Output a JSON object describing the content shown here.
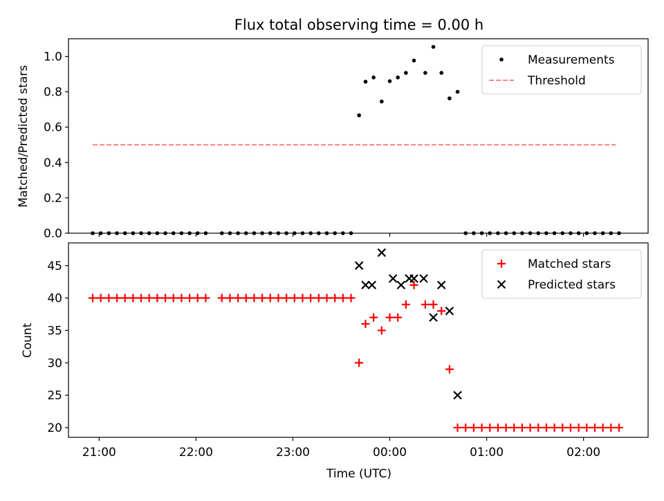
{
  "chart_data": [
    {
      "type": "scatter",
      "title": "Flux total observing time = 0.00 h",
      "xlabel": "",
      "ylabel": "Matched/Predicted stars",
      "ylim": [
        0.0,
        1.1
      ],
      "yticks": [
        "0.0",
        "0.2",
        "0.4",
        "0.6",
        "0.8",
        "1.0"
      ],
      "ytick_values": [
        0,
        0.2,
        0.4,
        0.6,
        0.8,
        1.0
      ],
      "legend_position": "top-right",
      "grid": false,
      "series": [
        {
          "name": "Measurements",
          "marker": "dot",
          "color": "#000000",
          "points": [
            [
              "20:56",
              0
            ],
            [
              "21:01",
              0
            ],
            [
              "21:06",
              0
            ],
            [
              "21:11",
              0
            ],
            [
              "21:16",
              0
            ],
            [
              "21:21",
              0
            ],
            [
              "21:26",
              0
            ],
            [
              "21:31",
              0
            ],
            [
              "21:36",
              0
            ],
            [
              "21:41",
              0
            ],
            [
              "21:46",
              0
            ],
            [
              "21:51",
              0
            ],
            [
              "21:56",
              0
            ],
            [
              "22:01",
              0
            ],
            [
              "22:06",
              0
            ],
            [
              "22:16",
              0
            ],
            [
              "22:21",
              0
            ],
            [
              "22:26",
              0
            ],
            [
              "22:31",
              0
            ],
            [
              "22:36",
              0
            ],
            [
              "22:41",
              0
            ],
            [
              "22:46",
              0
            ],
            [
              "22:51",
              0
            ],
            [
              "22:56",
              0
            ],
            [
              "23:01",
              0
            ],
            [
              "23:06",
              0
            ],
            [
              "23:11",
              0
            ],
            [
              "23:16",
              0
            ],
            [
              "23:21",
              0
            ],
            [
              "23:26",
              0
            ],
            [
              "23:31",
              0
            ],
            [
              "23:36",
              0
            ],
            [
              "23:41",
              0.667
            ],
            [
              "23:45",
              0.857
            ],
            [
              "23:50",
              0.881
            ],
            [
              "23:55",
              0.745
            ],
            [
              "00:00",
              0.86
            ],
            [
              "00:05",
              0.881
            ],
            [
              "00:10",
              0.907
            ],
            [
              "00:15",
              0.977
            ],
            [
              "00:22",
              0.907
            ],
            [
              "00:27",
              1.054
            ],
            [
              "00:32",
              0.907
            ],
            [
              "00:37",
              0.763
            ],
            [
              "00:42",
              0.8
            ],
            [
              "00:47",
              0
            ],
            [
              "00:52",
              0
            ],
            [
              "00:57",
              0
            ],
            [
              "01:02",
              0
            ],
            [
              "01:07",
              0
            ],
            [
              "01:12",
              0
            ],
            [
              "01:17",
              0
            ],
            [
              "01:22",
              0
            ],
            [
              "01:27",
              0
            ],
            [
              "01:32",
              0
            ],
            [
              "01:37",
              0
            ],
            [
              "01:42",
              0
            ],
            [
              "01:47",
              0
            ],
            [
              "01:52",
              0
            ],
            [
              "01:57",
              0
            ],
            [
              "02:02",
              0
            ],
            [
              "02:07",
              0
            ],
            [
              "02:12",
              0
            ],
            [
              "02:17",
              0
            ],
            [
              "02:22",
              0
            ]
          ]
        },
        {
          "name": "Threshold",
          "marker": "dashed-line",
          "color": "#ff7f7f",
          "points": [
            [
              "20:56",
              0.5
            ],
            [
              "02:20",
              0.5
            ]
          ]
        }
      ]
    },
    {
      "type": "scatter",
      "title": "",
      "xlabel": "Time (UTC)",
      "ylabel": "Count",
      "ylim": [
        18.5,
        48.5
      ],
      "yticks": [
        "20",
        "25",
        "30",
        "35",
        "40",
        "45"
      ],
      "ytick_values": [
        20,
        25,
        30,
        35,
        40,
        45
      ],
      "xlim": [
        "20:41",
        "02:40"
      ],
      "xticks": [
        "21:00",
        "22:00",
        "23:00",
        "00:00",
        "01:00",
        "02:00"
      ],
      "legend_position": "top-right",
      "grid": false,
      "series": [
        {
          "name": "Matched stars",
          "marker": "plus",
          "color": "#ff0000",
          "points": [
            [
              "20:56",
              40
            ],
            [
              "21:01",
              40
            ],
            [
              "21:06",
              40
            ],
            [
              "21:11",
              40
            ],
            [
              "21:16",
              40
            ],
            [
              "21:21",
              40
            ],
            [
              "21:26",
              40
            ],
            [
              "21:31",
              40
            ],
            [
              "21:36",
              40
            ],
            [
              "21:41",
              40
            ],
            [
              "21:46",
              40
            ],
            [
              "21:51",
              40
            ],
            [
              "21:56",
              40
            ],
            [
              "22:01",
              40
            ],
            [
              "22:06",
              40
            ],
            [
              "22:16",
              40
            ],
            [
              "22:21",
              40
            ],
            [
              "22:26",
              40
            ],
            [
              "22:31",
              40
            ],
            [
              "22:36",
              40
            ],
            [
              "22:41",
              40
            ],
            [
              "22:46",
              40
            ],
            [
              "22:51",
              40
            ],
            [
              "22:56",
              40
            ],
            [
              "23:01",
              40
            ],
            [
              "23:06",
              40
            ],
            [
              "23:11",
              40
            ],
            [
              "23:16",
              40
            ],
            [
              "23:21",
              40
            ],
            [
              "23:26",
              40
            ],
            [
              "23:31",
              40
            ],
            [
              "23:36",
              40
            ],
            [
              "23:41",
              30
            ],
            [
              "23:45",
              36
            ],
            [
              "23:50",
              37
            ],
            [
              "23:55",
              35
            ],
            [
              "00:00",
              37
            ],
            [
              "00:05",
              37
            ],
            [
              "00:10",
              39
            ],
            [
              "00:15",
              42
            ],
            [
              "00:22",
              39
            ],
            [
              "00:27",
              39
            ],
            [
              "00:32",
              38
            ],
            [
              "00:37",
              29
            ],
            [
              "00:42",
              20
            ],
            [
              "00:47",
              20
            ],
            [
              "00:52",
              20
            ],
            [
              "00:57",
              20
            ],
            [
              "01:02",
              20
            ],
            [
              "01:07",
              20
            ],
            [
              "01:12",
              20
            ],
            [
              "01:17",
              20
            ],
            [
              "01:22",
              20
            ],
            [
              "01:27",
              20
            ],
            [
              "01:32",
              20
            ],
            [
              "01:37",
              20
            ],
            [
              "01:42",
              20
            ],
            [
              "01:47",
              20
            ],
            [
              "01:52",
              20
            ],
            [
              "01:57",
              20
            ],
            [
              "02:02",
              20
            ],
            [
              "02:07",
              20
            ],
            [
              "02:12",
              20
            ],
            [
              "02:17",
              20
            ],
            [
              "02:22",
              20
            ]
          ]
        },
        {
          "name": "Predicted stars",
          "marker": "x",
          "color": "#000000",
          "points": [
            [
              "23:41",
              45
            ],
            [
              "23:45",
              42
            ],
            [
              "23:49",
              42
            ],
            [
              "23:55",
              47
            ],
            [
              "00:02",
              43
            ],
            [
              "00:07",
              42
            ],
            [
              "00:12",
              43
            ],
            [
              "00:15",
              43
            ],
            [
              "00:21",
              43
            ],
            [
              "00:27",
              37
            ],
            [
              "00:32",
              42
            ],
            [
              "00:37",
              38
            ],
            [
              "00:42",
              25
            ]
          ]
        }
      ]
    }
  ]
}
